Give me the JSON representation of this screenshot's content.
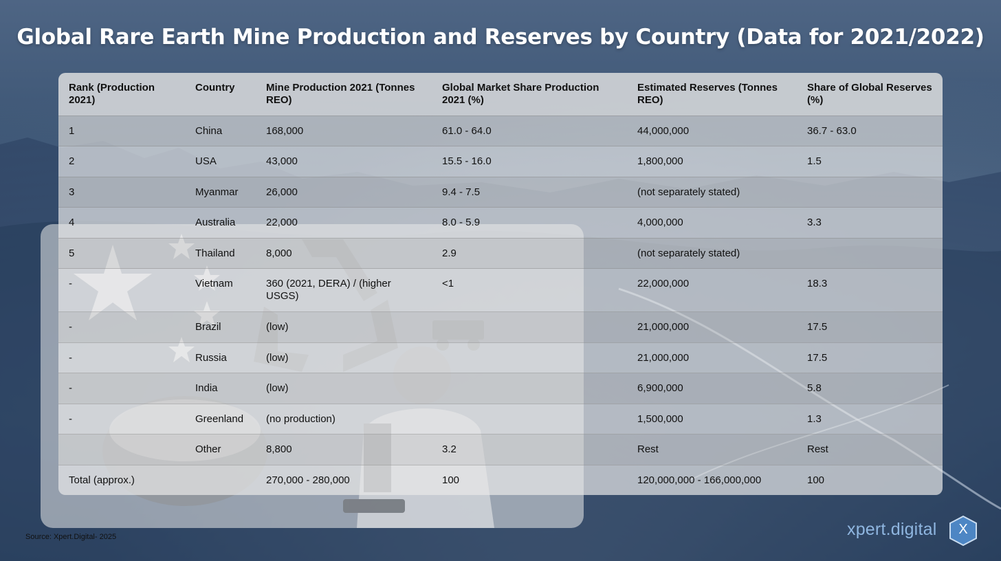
{
  "title": "Global Rare Earth Mine Production and Reserves by Country (Data for 2021/2022)",
  "table": {
    "headers": [
      "Rank (Production 2021)",
      "Country",
      "Mine Production 2021 (Tonnes REO)",
      "Global Market Share Production 2021 (%)",
      "Estimated Reserves (Tonnes REO)",
      "Share of Global Reserves (%)"
    ],
    "rows": [
      {
        "rank": "1",
        "country": "China",
        "production": "168,000",
        "share": "61.0 - 64.0",
        "reserves": "44,000,000",
        "reserve_share": "36.7 - 63.0"
      },
      {
        "rank": "2",
        "country": "USA",
        "production": "43,000",
        "share": "15.5 - 16.0",
        "reserves": "1,800,000",
        "reserve_share": "1.5"
      },
      {
        "rank": "3",
        "country": "Myanmar",
        "production": "26,000",
        "share": "9.4 - 7.5",
        "reserves": "(not separately stated)",
        "reserve_share": ""
      },
      {
        "rank": "4",
        "country": "Australia",
        "production": "22,000",
        "share": "8.0 - 5.9",
        "reserves": "4,000,000",
        "reserve_share": "3.3"
      },
      {
        "rank": "5",
        "country": "Thailand",
        "production": "8,000",
        "share": "2.9",
        "reserves": "(not separately stated)",
        "reserve_share": ""
      },
      {
        "rank": "-",
        "country": "Vietnam",
        "production": "360 (2021, DERA) / (higher USGS)",
        "share": "<1",
        "reserves": "22,000,000",
        "reserve_share": "18.3"
      },
      {
        "rank": "-",
        "country": "Brazil",
        "production": "(low)",
        "share": "",
        "reserves": "21,000,000",
        "reserve_share": "17.5"
      },
      {
        "rank": "-",
        "country": "Russia",
        "production": "(low)",
        "share": "",
        "reserves": "21,000,000",
        "reserve_share": "17.5"
      },
      {
        "rank": "-",
        "country": "India",
        "production": "(low)",
        "share": "",
        "reserves": "6,900,000",
        "reserve_share": "5.8"
      },
      {
        "rank": "-",
        "country": "Greenland",
        "production": "(no production)",
        "share": "",
        "reserves": "1,500,000",
        "reserve_share": "1.3"
      },
      {
        "rank": "",
        "country": "Other",
        "production": "8,800",
        "share": "3.2",
        "reserves": "Rest",
        "reserve_share": "Rest"
      },
      {
        "rank": "Total (approx.)",
        "country": "",
        "production": "270,000 - 280,000",
        "share": "100",
        "reserves": "120,000,000 - 166,000,000",
        "reserve_share": "100"
      }
    ]
  },
  "source": "Source: Xpert.Digital- 2025",
  "logo": {
    "text": "xpert.digital",
    "badge": "X"
  },
  "colors": {
    "title": "#ffffff",
    "logo_text": "#8fb6e0",
    "logo_badge": "#4d86c4"
  }
}
